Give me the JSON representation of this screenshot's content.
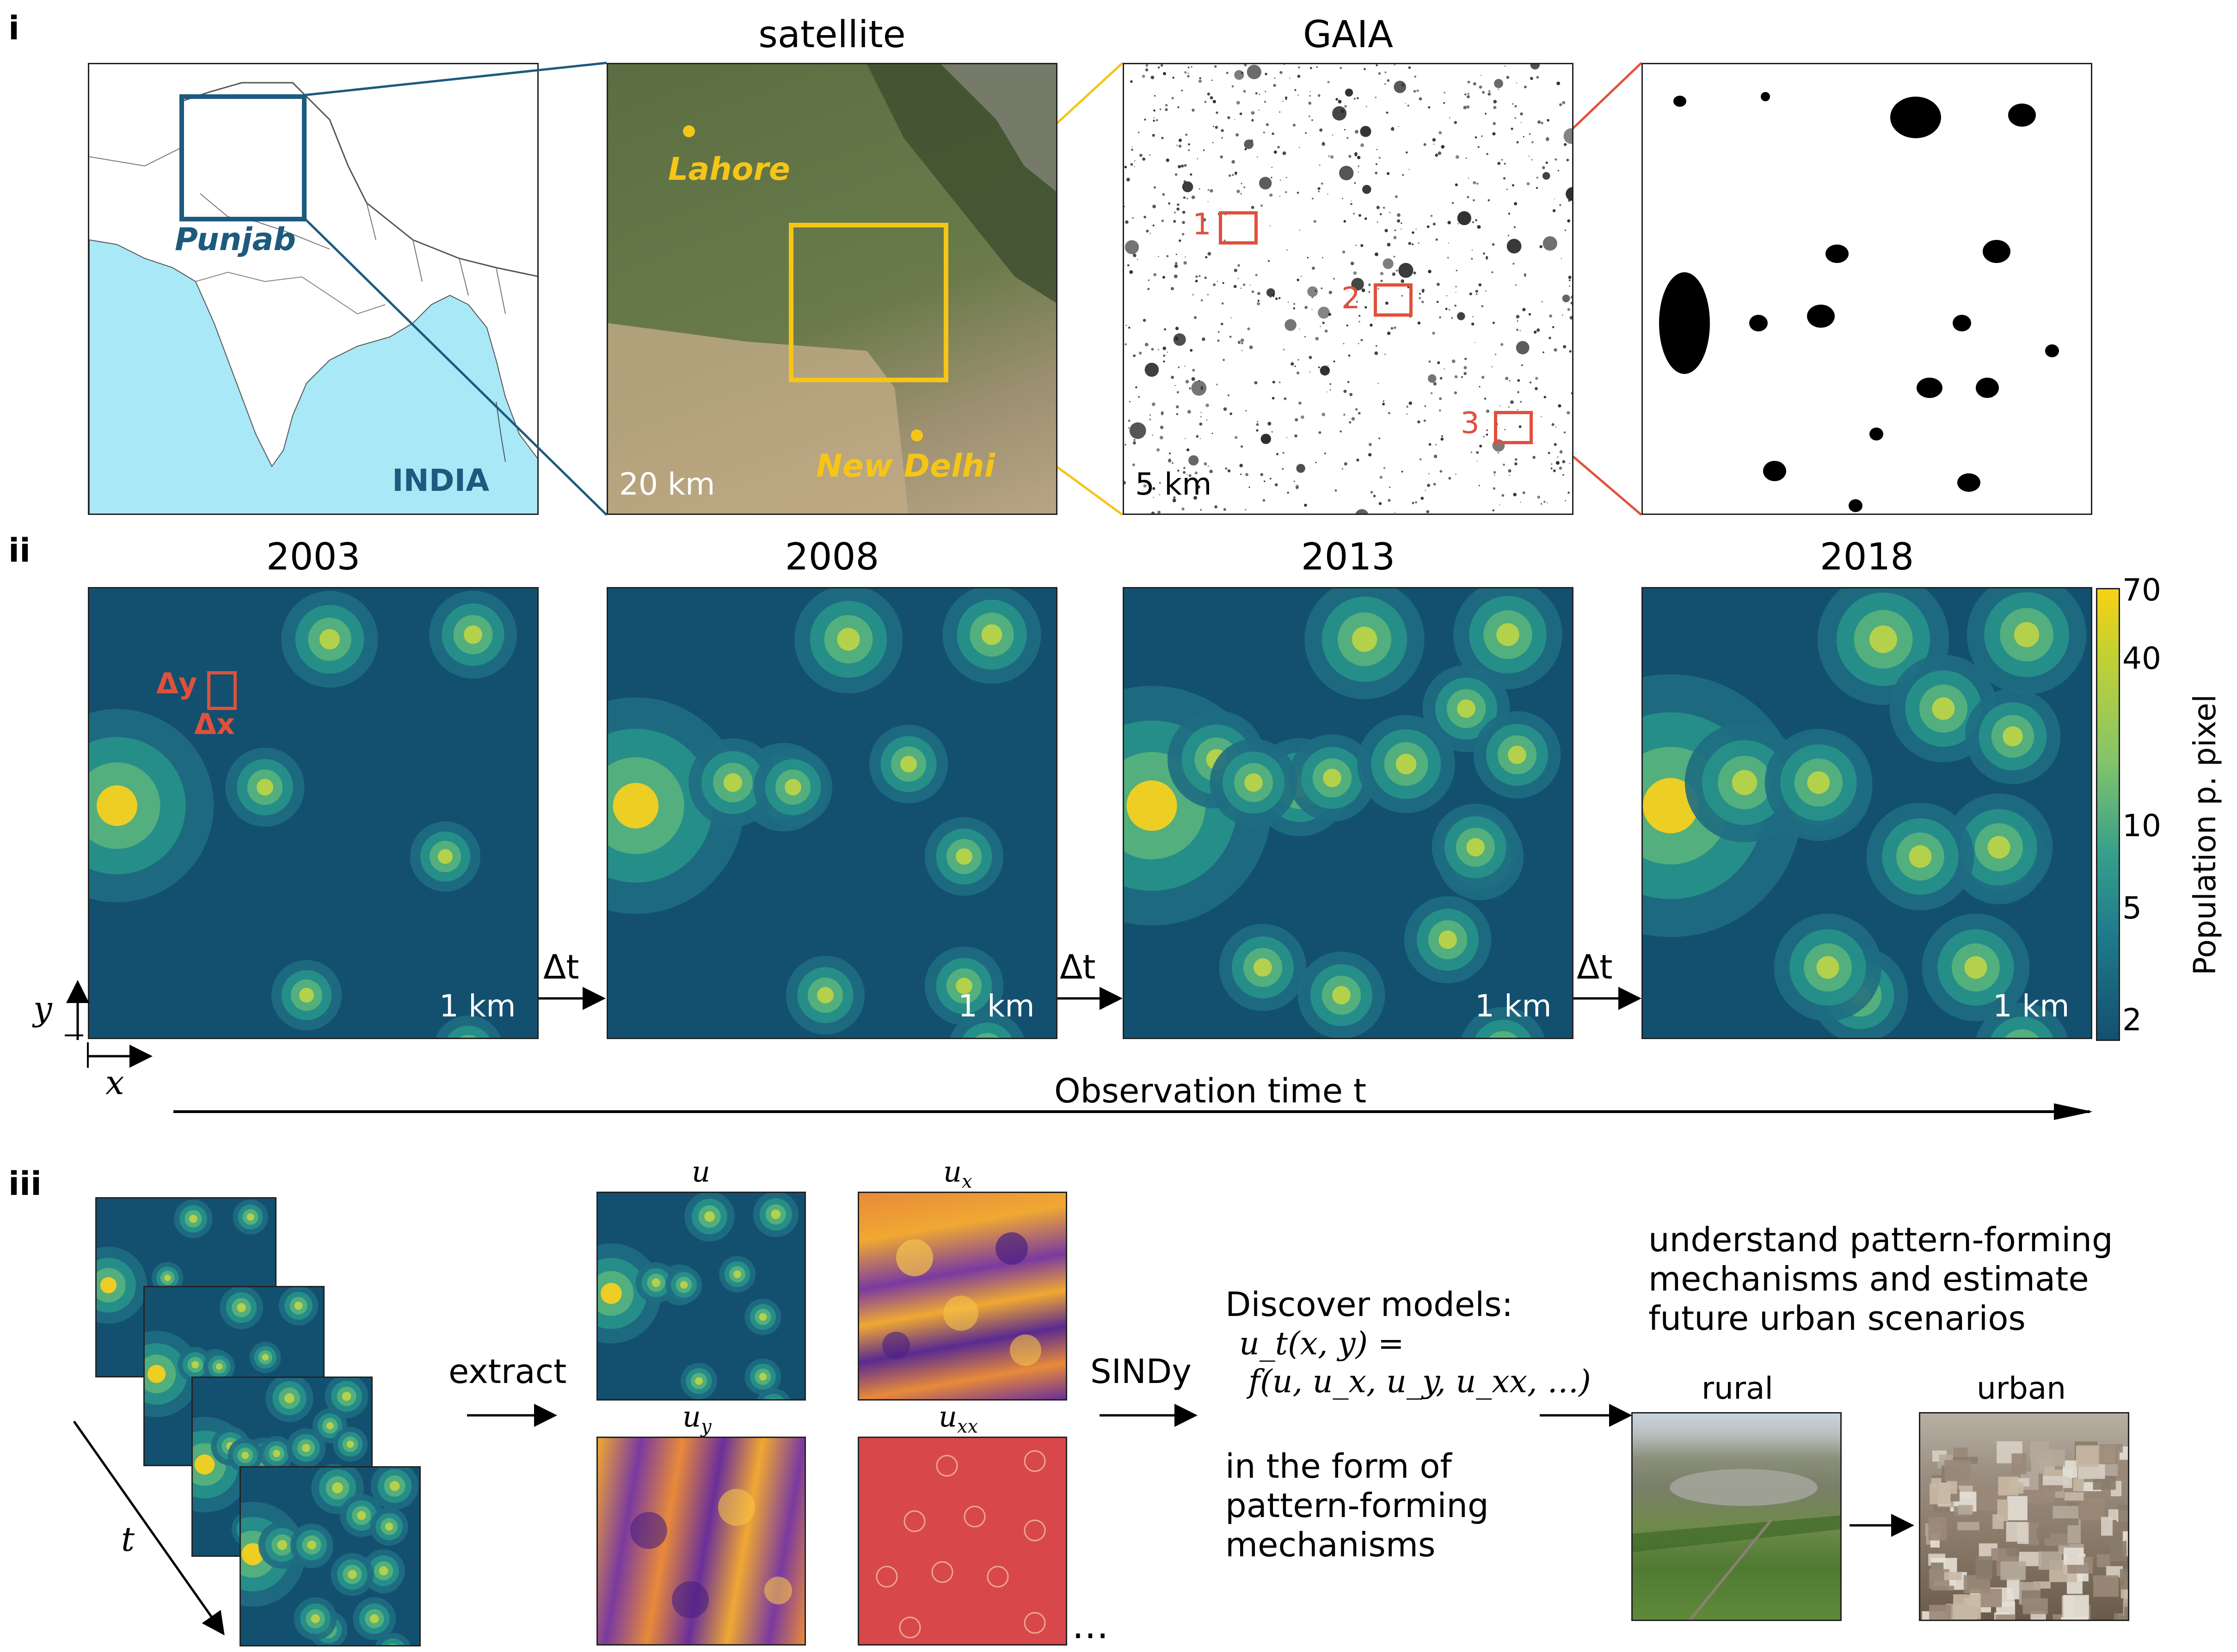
{
  "panel_labels": {
    "i": "i",
    "ii": "ii",
    "iii": "iii"
  },
  "row1": {
    "satellite_title": "satellite",
    "gaia_title": "GAIA",
    "map_label_region": "Punjab",
    "map_label_country": "INDIA",
    "city_lahore": "Lahore",
    "city_delhi": "New Delhi",
    "scale_satellite": "20 km",
    "scale_gaia": "5 km",
    "boxes": [
      "1",
      "2",
      "3"
    ]
  },
  "row2": {
    "years": [
      "2003",
      "2008",
      "2013",
      "2018"
    ],
    "scale": "1 km",
    "dt": "Δt",
    "dy": "Δy",
    "dx": "Δx",
    "axis_y": "y",
    "axis_x": "x",
    "time_axis": "Observation time t",
    "colorbar_title": "Population p. pixel",
    "colorbar_ticks": [
      "70",
      "40",
      "10",
      "5",
      "2"
    ]
  },
  "row3": {
    "stack_axis": "t",
    "extract": "extract",
    "sindy": "SINDy",
    "u": "u",
    "ux": "u",
    "ux_sub": "x",
    "uy": "u",
    "uy_sub": "y",
    "uxx": "u",
    "uxx_sub": "xx",
    "ellipsis": "…",
    "discover": "Discover models:",
    "eq1": "u_t(x, y) =",
    "eq2": "f(u, u_x, u_y, u_xx, …)",
    "form1": "in the form of",
    "form2": "pattern-forming",
    "form3": "mechanisms",
    "goal1": "understand pattern-forming",
    "goal2": "mechanisms and estimate",
    "goal3": "future urban scenarios",
    "rural": "rural",
    "urban": "urban"
  },
  "colors": {
    "map_blue": "#1d5a7e",
    "ocean": "#a9e8f7",
    "gold": "#f5c518",
    "red_box": "#e0503c",
    "viridis_bg": "#13506f"
  }
}
